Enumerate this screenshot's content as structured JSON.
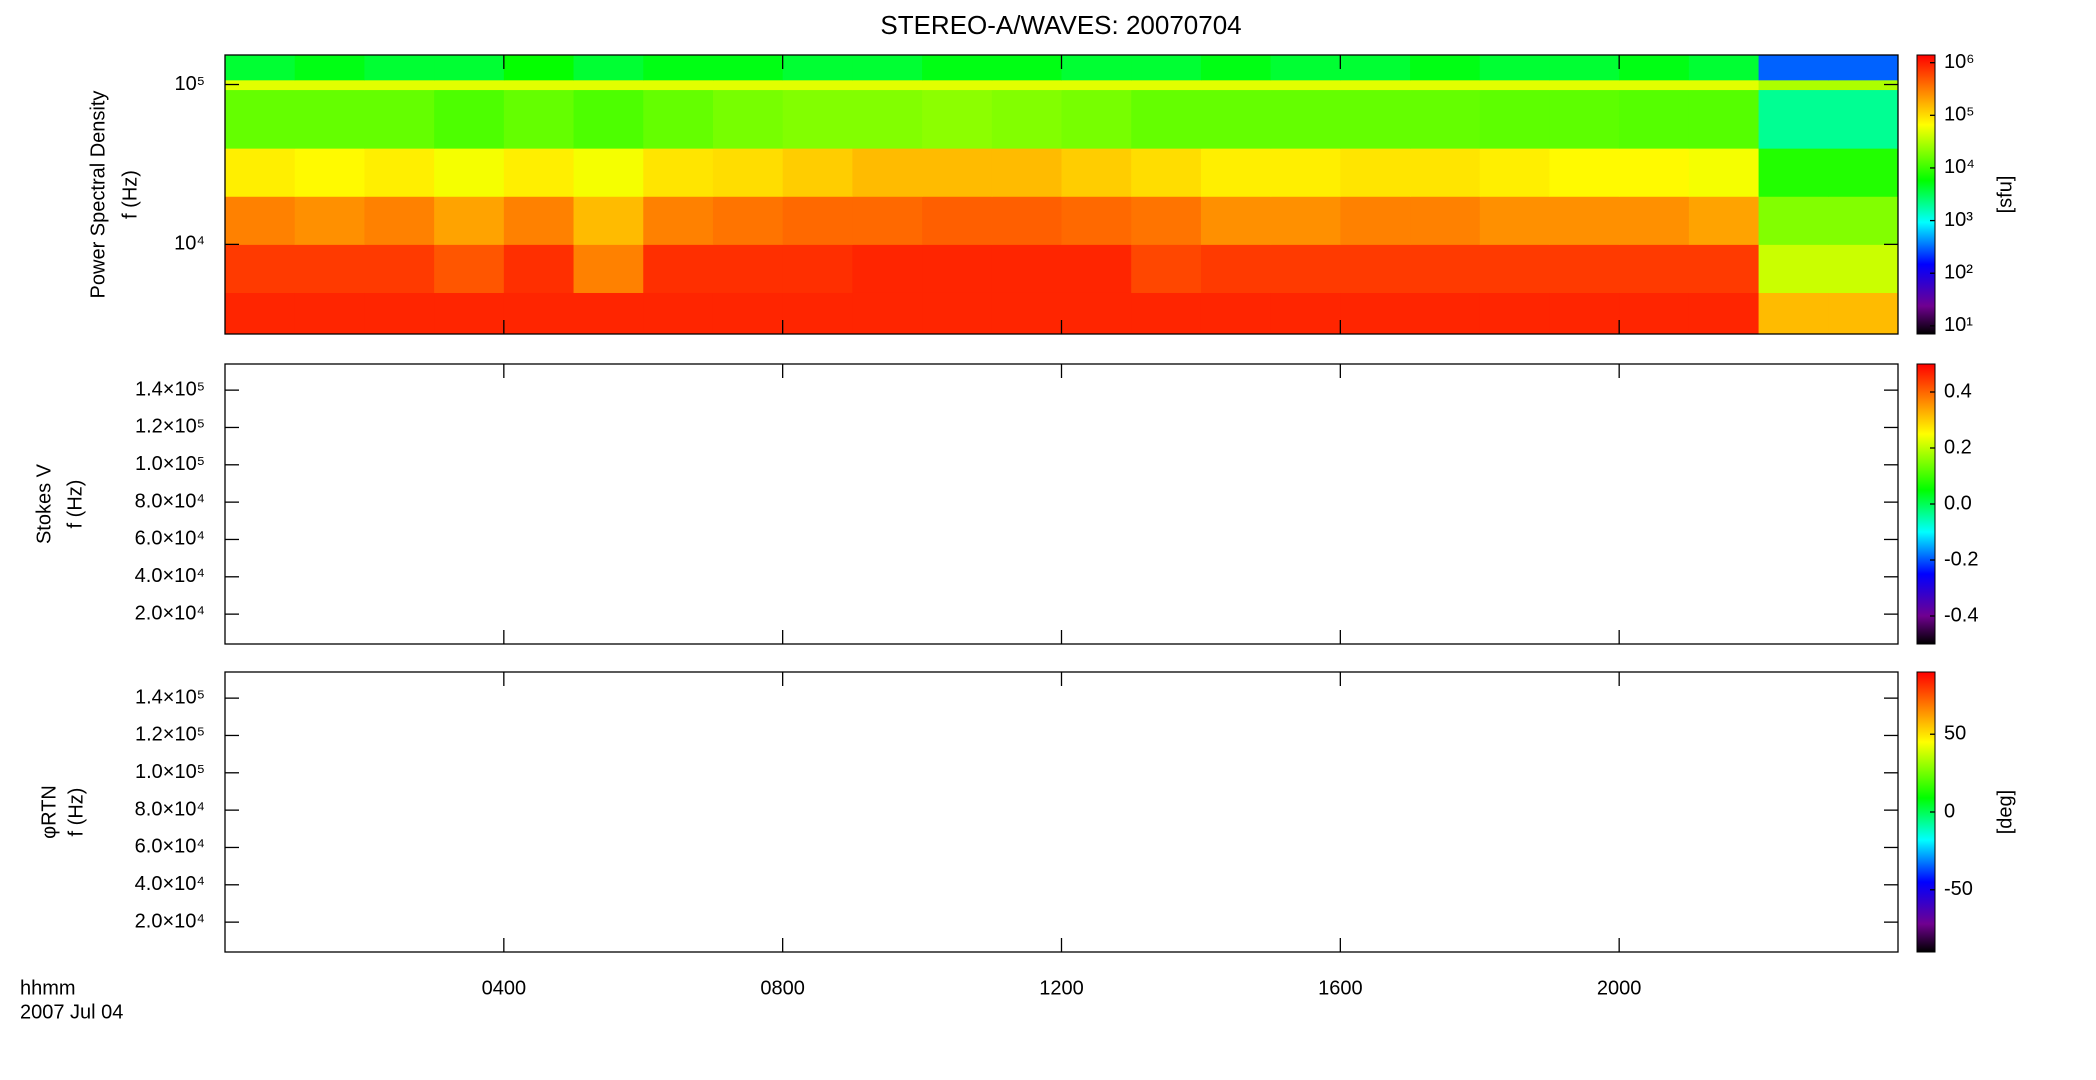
{
  "chart_data": [
    {
      "type": "heatmap",
      "title": "STEREO-A/WAVES: 20070704",
      "ylabel": [
        "Power Spectral Density",
        "f (Hz)"
      ],
      "xlim": [
        0,
        24
      ],
      "xticks": [
        4,
        8,
        12,
        16,
        20
      ],
      "ylog": true,
      "ylim": [
        2750,
        153000
      ],
      "yticks": [
        {
          "value": 10000,
          "label": "10⁴"
        },
        {
          "value": 100000,
          "label": "10⁵"
        }
      ],
      "x_bins": [
        0,
        1,
        2,
        3,
        4,
        5,
        6,
        7,
        8,
        9,
        10,
        11,
        12,
        13,
        14,
        15,
        16,
        17,
        18,
        19,
        20,
        21,
        22,
        23,
        24
      ],
      "y_bins": [
        2750,
        5000,
        10000,
        20000,
        40000,
        93000,
        107000,
        153000
      ],
      "values": [
        [
          900000,
          900000,
          900000,
          900000,
          900000,
          900000,
          900000,
          900000,
          900000,
          900000,
          900000,
          900000,
          900000,
          900000,
          900000,
          900000,
          900000,
          900000,
          900000,
          900000,
          900000,
          900000,
          150000,
          150000
        ],
        [
          700000,
          700000,
          700000,
          500000,
          800000,
          300000,
          800000,
          800000,
          800000,
          900000,
          900000,
          900000,
          900000,
          600000,
          700000,
          700000,
          700000,
          700000,
          700000,
          700000,
          700000,
          700000,
          40000,
          40000
        ],
        [
          300000,
          250000,
          300000,
          200000,
          300000,
          150000,
          300000,
          350000,
          400000,
          400000,
          450000,
          450000,
          400000,
          350000,
          250000,
          250000,
          300000,
          300000,
          250000,
          250000,
          250000,
          200000,
          20000,
          20000
        ],
        [
          80000,
          70000,
          80000,
          60000,
          80000,
          60000,
          90000,
          100000,
          120000,
          150000,
          150000,
          150000,
          120000,
          100000,
          80000,
          80000,
          90000,
          90000,
          80000,
          70000,
          70000,
          60000,
          8000,
          8000
        ],
        [
          15000,
          15000,
          15000,
          12000,
          15000,
          12000,
          15000,
          18000,
          20000,
          20000,
          22000,
          20000,
          18000,
          15000,
          15000,
          15000,
          15000,
          15000,
          14000,
          14000,
          13000,
          13000,
          2000,
          2000
        ],
        [
          50000,
          50000,
          50000,
          50000,
          50000,
          50000,
          50000,
          50000,
          50000,
          50000,
          50000,
          50000,
          50000,
          50000,
          50000,
          50000,
          50000,
          50000,
          50000,
          50000,
          50000,
          50000,
          30000,
          30000
        ],
        [
          4000,
          5000,
          4000,
          4000,
          6000,
          4000,
          5000,
          5000,
          4000,
          4000,
          5000,
          5000,
          4000,
          4000,
          5000,
          4000,
          4000,
          5000,
          4000,
          4000,
          5000,
          4000,
          300,
          300
        ]
      ],
      "colormap": "rainbow",
      "colorbar": {
        "label": "[sfu]",
        "log": true,
        "lim": [
          7,
          1400000
        ],
        "ticks": [
          {
            "value": 10,
            "label": "10¹"
          },
          {
            "value": 100,
            "label": "10²"
          },
          {
            "value": 1000,
            "label": "10³"
          },
          {
            "value": 10000,
            "label": "10⁴"
          },
          {
            "value": 100000,
            "label": "10⁵"
          },
          {
            "value": 1000000,
            "label": "10⁶"
          }
        ]
      }
    },
    {
      "type": "heatmap",
      "ylabel": [
        "Stokes V",
        "f (Hz)"
      ],
      "xlim": [
        0,
        24
      ],
      "xticks": [
        4,
        8,
        12,
        16,
        20
      ],
      "ylim": [
        4000,
        154000
      ],
      "yticks": [
        {
          "value": 20000,
          "label": "2.0×10⁴"
        },
        {
          "value": 40000,
          "label": "4.0×10⁴"
        },
        {
          "value": 60000,
          "label": "6.0×10⁴"
        },
        {
          "value": 80000,
          "label": "8.0×10⁴"
        },
        {
          "value": 100000,
          "label": "1.0×10⁵"
        },
        {
          "value": 120000,
          "label": "1.2×10⁵"
        },
        {
          "value": 140000,
          "label": "1.4×10⁵"
        }
      ],
      "colormap": "rainbow",
      "colorbar": {
        "lim": [
          -0.5,
          0.5
        ],
        "ticks": [
          -0.4,
          -0.2,
          {
            "value": 0,
            "label": "0.0"
          },
          0.2,
          0.4
        ]
      }
    },
    {
      "type": "heatmap",
      "ylabel": [
        "φRTN",
        "f (Hz)"
      ],
      "xlim": [
        0,
        24
      ],
      "xticks": [
        {
          "value": 4,
          "label": "0400"
        },
        {
          "value": 8,
          "label": "0800"
        },
        {
          "value": 12,
          "label": "1200"
        },
        {
          "value": 16,
          "label": "1600"
        },
        {
          "value": 20,
          "label": "2000"
        }
      ],
      "xlabel": "hhmm",
      "date": "2007 Jul 04",
      "ylim": [
        4000,
        154000
      ],
      "yticks": [
        {
          "value": 20000,
          "label": "2.0×10⁴"
        },
        {
          "value": 40000,
          "label": "4.0×10⁴"
        },
        {
          "value": 60000,
          "label": "6.0×10⁴"
        },
        {
          "value": 80000,
          "label": "8.0×10⁴"
        },
        {
          "value": 100000,
          "label": "1.0×10⁵"
        },
        {
          "value": 120000,
          "label": "1.2×10⁵"
        },
        {
          "value": 140000,
          "label": "1.4×10⁵"
        }
      ],
      "colormap": "rainbow",
      "colorbar": {
        "label": "[deg]",
        "lim": [
          -90,
          90
        ],
        "ticks": [
          -50,
          0,
          50
        ]
      }
    }
  ]
}
